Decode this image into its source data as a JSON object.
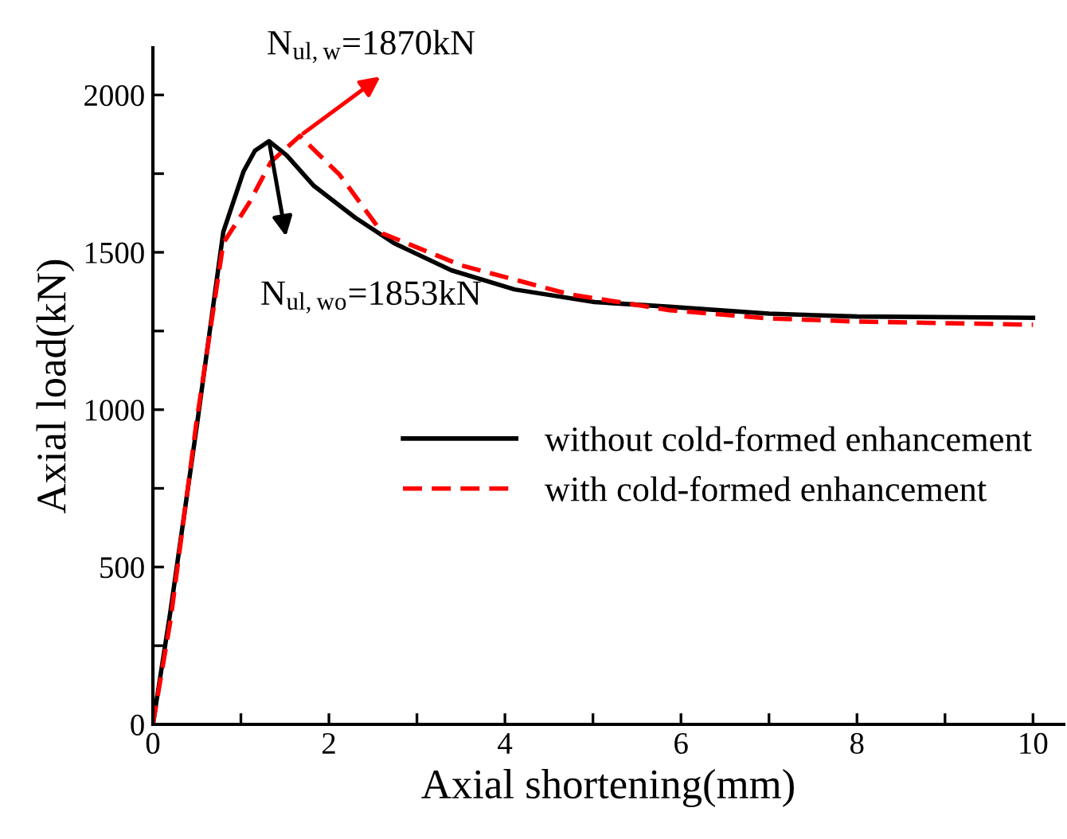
{
  "chart_data": {
    "type": "line",
    "xlabel": "Axial shortening(mm)",
    "ylabel": "Axial load(kN)",
    "xlim": [
      0,
      10.35
    ],
    "ylim": [
      0,
      2150
    ],
    "xticks": [
      0,
      {
        "value": 1,
        "label": null
      },
      2,
      {
        "value": 3,
        "label": null
      },
      4,
      {
        "value": 5,
        "label": null
      },
      6,
      {
        "value": 7,
        "label": null
      },
      8,
      {
        "value": 9,
        "label": null
      },
      10
    ],
    "yticks": [
      0,
      {
        "value": 250,
        "label": null
      },
      500,
      {
        "value": 750,
        "label": null
      },
      1000,
      {
        "value": 1250,
        "label": null
      },
      1500,
      {
        "value": 1750,
        "label": null
      },
      2000
    ],
    "series": [
      {
        "name": "without cold-formed enhancement",
        "color": "#000000",
        "line_style": "solid",
        "x": [
          0,
          0.2,
          0.5,
          0.8,
          1.03,
          1.16,
          1.32,
          1.52,
          1.83,
          2.3,
          2.74,
          3.39,
          4.11,
          5.02,
          5.87,
          7,
          8,
          10
        ],
        "values": [
          0,
          360,
          950,
          1565,
          1757,
          1823,
          1853,
          1808,
          1711,
          1610,
          1529,
          1443,
          1382,
          1342,
          1327,
          1305,
          1296,
          1292
        ]
      },
      {
        "name": "with cold-formed enhancement",
        "color": "#ff0000",
        "line_style": "dashed",
        "x": [
          0,
          0.2,
          0.49,
          0.8,
          1.1,
          1.34,
          1.67,
          2.12,
          2.61,
          3.51,
          4.73,
          5.87,
          7,
          8,
          10
        ],
        "values": [
          0,
          330,
          950,
          1529,
          1660,
          1787,
          1870,
          1747,
          1560,
          1458,
          1367,
          1316,
          1290,
          1280,
          1270
        ]
      }
    ],
    "annotations": [
      "N$_{ul,w}$=1870kN",
      "N$_{ul,wo}$=1853kN"
    ],
    "legend": "right",
    "grid": false
  }
}
